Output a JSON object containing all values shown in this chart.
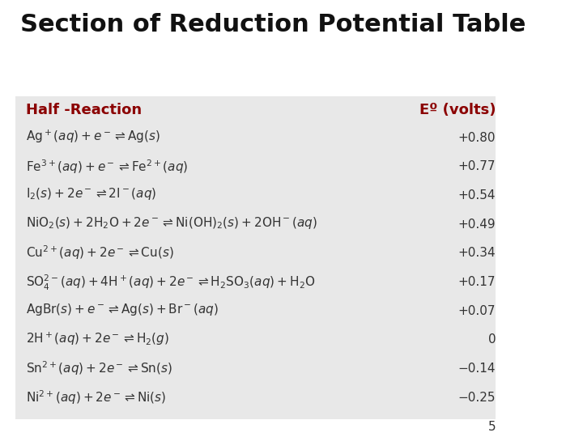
{
  "title": "Section of Reduction Potential Table",
  "title_color": "#111111",
  "title_fontsize": 22,
  "header_left": "Half -Reaction",
  "header_right": "Eº (volts)",
  "header_color": "#8B0000",
  "header_fontsize": 13,
  "bg_color": "#ffffff",
  "table_bg": "#e8e8e8",
  "rows": [
    {
      "reaction": "$\\mathregular{Ag^+(}$$\\it{aq}$$\\mathregular{) + }$$\\it{e}$$\\mathregular{^- \\rightleftharpoons Ag(}$$\\it{s}$$\\mathregular{)}$",
      "value": "+0.80"
    },
    {
      "reaction": "$\\mathregular{Fe^{3+}(}$$\\it{aq}$$\\mathregular{) + }$$\\it{e}$$\\mathregular{^- \\rightleftharpoons Fe^{2+}(}$$\\it{aq}$$\\mathregular{)}$",
      "value": "+0.77"
    },
    {
      "reaction": "$\\mathregular{I_2(}$$\\it{s}$$\\mathregular{) + 2}$$\\it{e}$$\\mathregular{^- \\rightleftharpoons 2I^-(}$$\\it{aq}$$\\mathregular{)}$",
      "value": "+0.54"
    },
    {
      "reaction": "$\\mathregular{NiO_2(}$$\\it{s}$$\\mathregular{) + 2H_2O + 2}$$\\it{e}$$\\mathregular{^- \\rightleftharpoons Ni(OH)_2(}$$\\it{s}$$\\mathregular{) + 2OH^-(}$$\\it{aq}$$\\mathregular{)}$",
      "value": "+0.49"
    },
    {
      "reaction": "$\\mathregular{Cu^{2+}(}$$\\it{aq}$$\\mathregular{) + 2}$$\\it{e}$$\\mathregular{^- \\rightleftharpoons Cu(}$$\\it{s}$$\\mathregular{)}$",
      "value": "+0.34"
    },
    {
      "reaction": "$\\mathregular{SO_4^{2-}(}$$\\it{aq}$$\\mathregular{) + 4H^+(}$$\\it{aq}$$\\mathregular{) + 2}$$\\it{e}$$\\mathregular{^- \\rightleftharpoons H_2SO_3(}$$\\it{aq}$$\\mathregular{) + H_2O}$",
      "value": "+0.17"
    },
    {
      "reaction": "$\\mathregular{AgBr(}$$\\it{s}$$\\mathregular{) + }$$\\it{e}$$\\mathregular{^- \\rightleftharpoons Ag(}$$\\it{s}$$\\mathregular{) + Br^-(}$$\\it{aq}$$\\mathregular{)}$",
      "value": "+0.07"
    },
    {
      "reaction": "$\\mathregular{2H^+(}$$\\it{aq}$$\\mathregular{) + 2}$$\\it{e}$$\\mathregular{^- \\rightleftharpoons H_2(}$$\\it{g}$$\\mathregular{)}$",
      "value": "0"
    },
    {
      "reaction": "$\\mathregular{Sn^{2+}(}$$\\it{aq}$$\\mathregular{) + 2}$$\\it{e}$$\\mathregular{^- \\rightleftharpoons Sn(}$$\\it{s}$$\\mathregular{)}$",
      "value": "−0.14"
    },
    {
      "reaction": "$\\mathregular{Ni^{2+}(}$$\\it{aq}$$\\mathregular{) + 2}$$\\it{e}$$\\mathregular{^- \\rightleftharpoons Ni(}$$\\it{s}$$\\mathregular{)}$",
      "value": "−0.25"
    }
  ],
  "row_fontsize": 11,
  "value_fontsize": 11,
  "slide_number": "5",
  "slide_number_fontsize": 11
}
